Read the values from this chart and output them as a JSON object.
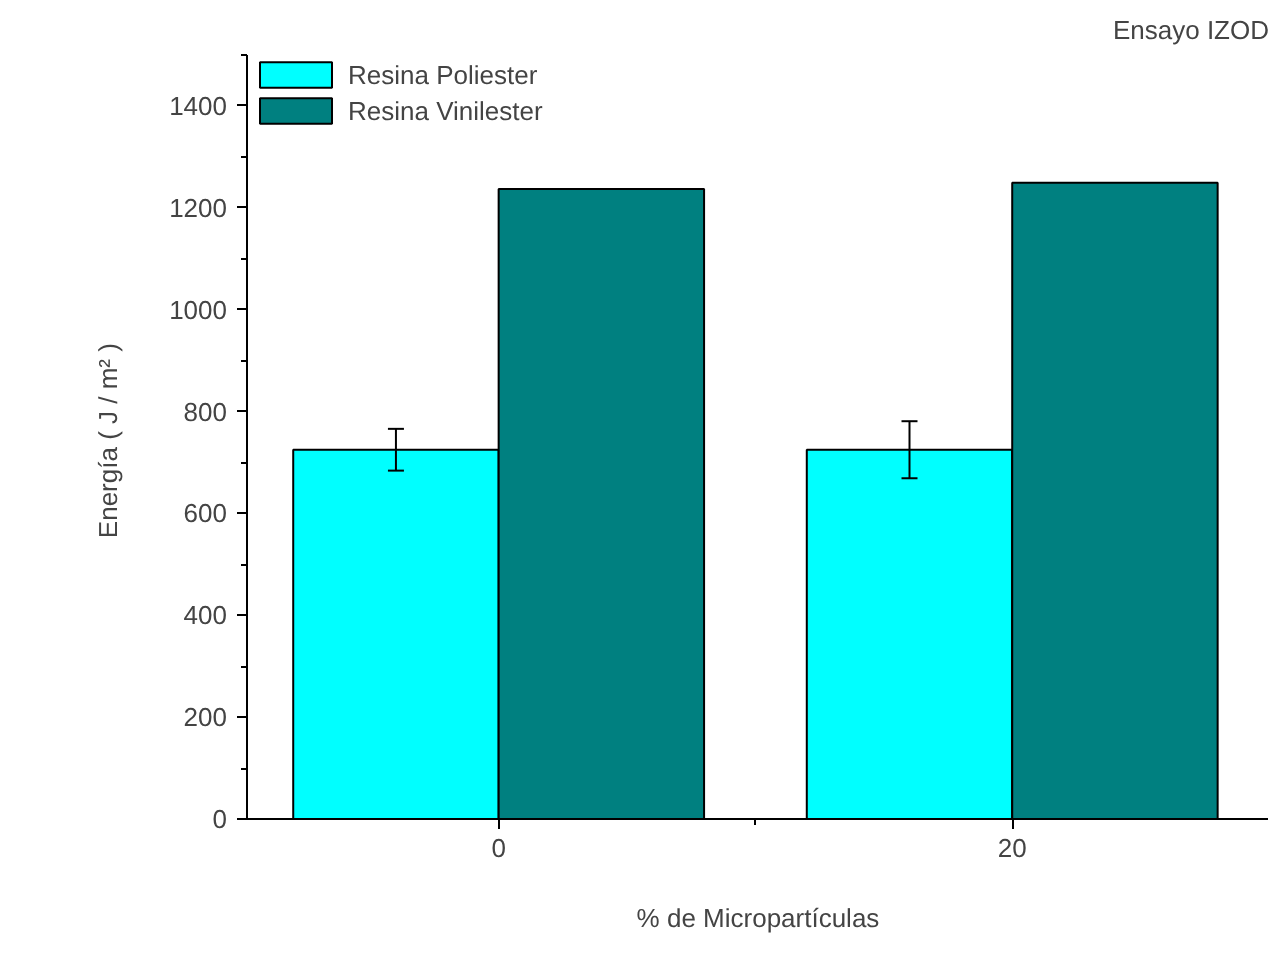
{
  "chart_data": {
    "type": "bar",
    "title": "Ensayo IZOD",
    "xlabel": "% de Micropartículas",
    "ylabel": "Energía  ( J / m² )",
    "categories": [
      "0",
      "20"
    ],
    "series": [
      {
        "name": "Resina Poliester",
        "color": "#00ffff",
        "values": [
          725,
          725
        ],
        "errors": [
          41,
          56
        ]
      },
      {
        "name": "Resina Vinilester",
        "color": "#008080",
        "values": [
          1237,
          1249
        ]
      }
    ],
    "ylim": [
      0,
      1500
    ],
    "yticks": [
      0,
      200,
      400,
      600,
      800,
      1000,
      1200,
      1400
    ],
    "grid": false,
    "legend": "top left"
  }
}
